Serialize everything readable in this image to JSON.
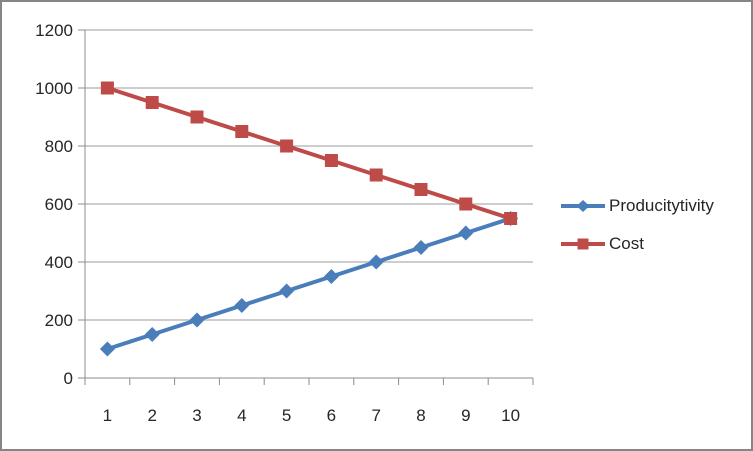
{
  "window": {
    "background": "#FFFFFF",
    "border_color": "#868686"
  },
  "chart_data": {
    "type": "line",
    "title": "",
    "xlabel": "",
    "ylabel": "",
    "categories": [
      "1",
      "2",
      "3",
      "4",
      "5",
      "6",
      "7",
      "8",
      "9",
      "10"
    ],
    "series": [
      {
        "name": "Producitytivity",
        "color": "#4A7EBB",
        "marker": "diamond",
        "values": [
          100,
          150,
          200,
          250,
          300,
          350,
          400,
          450,
          500,
          550
        ]
      },
      {
        "name": "Cost",
        "color": "#BE4B48",
        "marker": "square",
        "values": [
          1000,
          950,
          900,
          850,
          800,
          750,
          700,
          650,
          600,
          550
        ]
      }
    ],
    "ylim": [
      0,
      1200
    ],
    "yticks": [
      0,
      200,
      400,
      600,
      800,
      1000,
      1200
    ],
    "grid": true,
    "legend_position": "right",
    "grid_color": "#9B9B9B",
    "axis_color": "#8C8C8C"
  }
}
